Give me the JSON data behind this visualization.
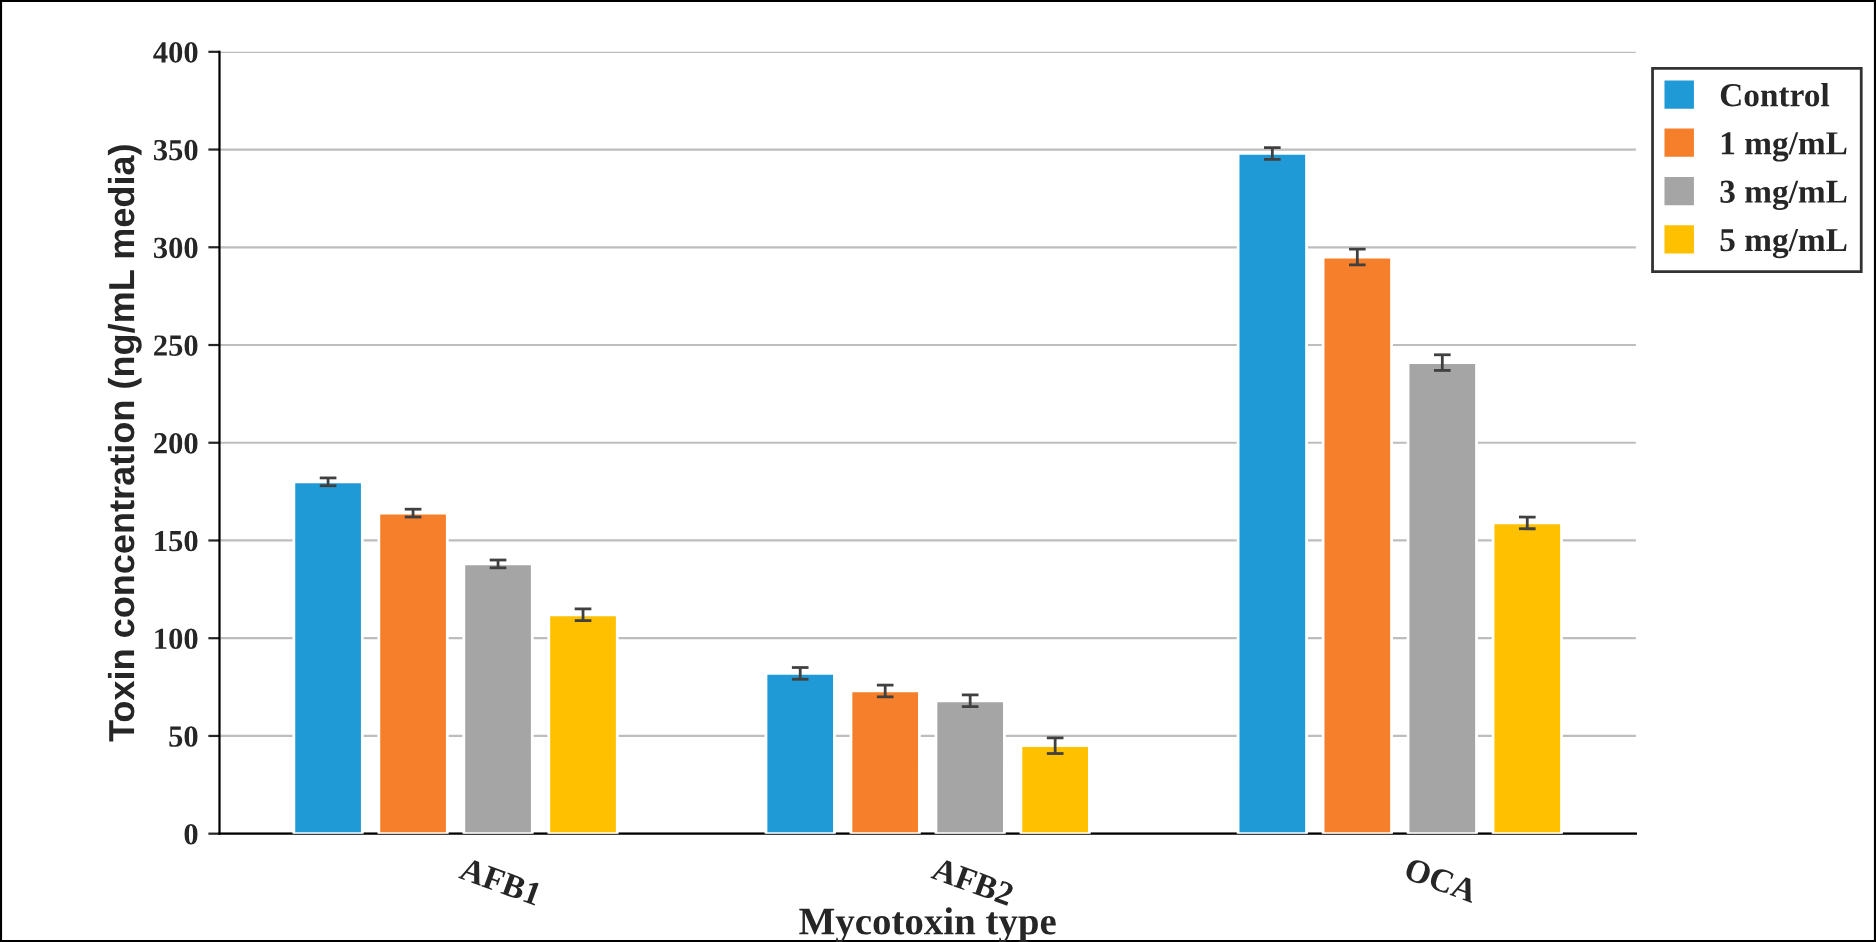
{
  "chart_data": {
    "type": "bar",
    "xlabel": "Mycotoxin type",
    "ylabel": "Toxin concentration (ng/mL media)",
    "categories": [
      "AFB1",
      "AFB2",
      "OCA"
    ],
    "series": [
      {
        "name": "Control",
        "color": "#1f9ad6",
        "values": [
          180,
          82,
          348
        ],
        "errors": [
          2,
          3,
          3
        ]
      },
      {
        "name": "1 mg/mL",
        "color": "#f57f2a",
        "values": [
          164,
          73,
          295
        ],
        "errors": [
          2,
          3,
          4
        ]
      },
      {
        "name": "3 mg/mL",
        "color": "#a5a5a5",
        "values": [
          138,
          68,
          241
        ],
        "errors": [
          2,
          3,
          4
        ]
      },
      {
        "name": "5 mg/mL",
        "color": "#ffc000",
        "values": [
          112,
          45,
          159
        ],
        "errors": [
          3,
          4,
          3
        ]
      }
    ],
    "ylim": [
      0,
      400
    ],
    "yticks": [
      0,
      50,
      100,
      150,
      200,
      250,
      300,
      350,
      400
    ],
    "grid": "y",
    "legend": "top right"
  }
}
